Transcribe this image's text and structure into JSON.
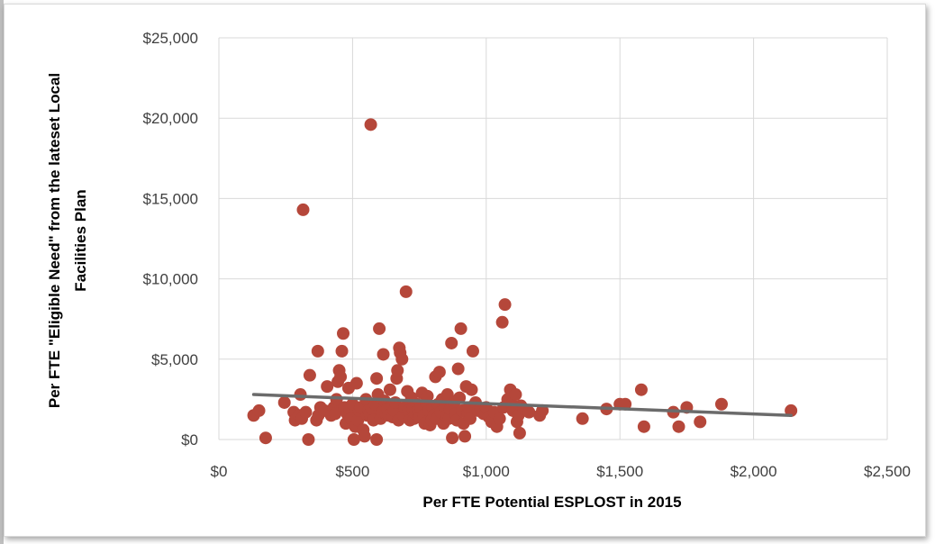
{
  "chart_data": {
    "type": "scatter",
    "title": "",
    "xlabel": "Per FTE Potential ESPLOST in 2015",
    "ylabel_line1": "Per FTE \"Eligible Need\" from the lateset Local",
    "ylabel_line2": "Facilities Plan",
    "xlim": [
      0,
      2500
    ],
    "ylim": [
      0,
      25000
    ],
    "x_ticks": [
      0,
      500,
      1000,
      1500,
      2000,
      2500
    ],
    "x_tick_labels": [
      "$0",
      "$500",
      "$1,000",
      "$1,500",
      "$2,000",
      "$2,500"
    ],
    "y_ticks": [
      0,
      5000,
      10000,
      15000,
      20000,
      25000
    ],
    "y_tick_labels": [
      "$0",
      "$5,000",
      "$10,000",
      "$15,000",
      "$20,000",
      "$25,000"
    ],
    "grid": true,
    "legend": "none",
    "point_color": "#b5473a",
    "trendline_color": "#6b6b6b",
    "trendline": {
      "x": [
        130,
        2140
      ],
      "y": [
        2800,
        1500
      ]
    },
    "points": [
      [
        130,
        1500
      ],
      [
        150,
        1800
      ],
      [
        175,
        100
      ],
      [
        245,
        2300
      ],
      [
        280,
        1700
      ],
      [
        285,
        1200
      ],
      [
        300,
        1500
      ],
      [
        305,
        2800
      ],
      [
        310,
        1300
      ],
      [
        315,
        14300
      ],
      [
        325,
        1700
      ],
      [
        335,
        0
      ],
      [
        340,
        4000
      ],
      [
        365,
        1200
      ],
      [
        370,
        5500
      ],
      [
        372,
        1500
      ],
      [
        380,
        2000
      ],
      [
        395,
        1800
      ],
      [
        405,
        3300
      ],
      [
        420,
        1500
      ],
      [
        430,
        2000
      ],
      [
        435,
        1600
      ],
      [
        440,
        2500
      ],
      [
        445,
        3600
      ],
      [
        450,
        4300
      ],
      [
        455,
        3900
      ],
      [
        460,
        5500
      ],
      [
        465,
        6600
      ],
      [
        470,
        2000
      ],
      [
        475,
        1000
      ],
      [
        480,
        1600
      ],
      [
        485,
        3200
      ],
      [
        490,
        1900
      ],
      [
        495,
        1300
      ],
      [
        500,
        2200
      ],
      [
        505,
        0
      ],
      [
        510,
        800
      ],
      [
        515,
        3500
      ],
      [
        520,
        1200
      ],
      [
        525,
        1800
      ],
      [
        530,
        2000
      ],
      [
        540,
        600
      ],
      [
        545,
        200
      ],
      [
        550,
        2500
      ],
      [
        555,
        1500
      ],
      [
        560,
        1800
      ],
      [
        565,
        1600
      ],
      [
        568,
        19600
      ],
      [
        572,
        1900
      ],
      [
        578,
        1200
      ],
      [
        585,
        2200
      ],
      [
        590,
        0
      ],
      [
        590,
        3800
      ],
      [
        595,
        2800
      ],
      [
        600,
        6900
      ],
      [
        605,
        1300
      ],
      [
        610,
        1700
      ],
      [
        615,
        5300
      ],
      [
        620,
        2400
      ],
      [
        625,
        1600
      ],
      [
        630,
        1900
      ],
      [
        635,
        1500
      ],
      [
        640,
        3100
      ],
      [
        650,
        1400
      ],
      [
        655,
        1800
      ],
      [
        660,
        2300
      ],
      [
        665,
        3800
      ],
      [
        668,
        4300
      ],
      [
        672,
        1200
      ],
      [
        675,
        5700
      ],
      [
        678,
        5400
      ],
      [
        685,
        5000
      ],
      [
        690,
        1500
      ],
      [
        695,
        2000
      ],
      [
        700,
        9200
      ],
      [
        705,
        3000
      ],
      [
        710,
        1800
      ],
      [
        715,
        1200
      ],
      [
        720,
        2600
      ],
      [
        725,
        1900
      ],
      [
        730,
        1300
      ],
      [
        735,
        1600
      ],
      [
        740,
        2200
      ],
      [
        745,
        1800
      ],
      [
        750,
        1400
      ],
      [
        755,
        2000
      ],
      [
        760,
        2900
      ],
      [
        765,
        1500
      ],
      [
        770,
        1000
      ],
      [
        775,
        2300
      ],
      [
        780,
        2700
      ],
      [
        785,
        1800
      ],
      [
        790,
        900
      ],
      [
        795,
        1200
      ],
      [
        800,
        2000
      ],
      [
        805,
        1500
      ],
      [
        810,
        3900
      ],
      [
        815,
        1300
      ],
      [
        820,
        2200
      ],
      [
        825,
        4200
      ],
      [
        830,
        1700
      ],
      [
        835,
        2500
      ],
      [
        840,
        1000
      ],
      [
        845,
        2000
      ],
      [
        850,
        1500
      ],
      [
        855,
        2800
      ],
      [
        860,
        1300
      ],
      [
        865,
        1900
      ],
      [
        870,
        6000
      ],
      [
        873,
        100
      ],
      [
        880,
        2300
      ],
      [
        885,
        1600
      ],
      [
        890,
        1200
      ],
      [
        895,
        4400
      ],
      [
        900,
        2600
      ],
      [
        905,
        6900
      ],
      [
        910,
        1800
      ],
      [
        915,
        1000
      ],
      [
        920,
        200
      ],
      [
        925,
        3300
      ],
      [
        930,
        1600
      ],
      [
        935,
        2000
      ],
      [
        940,
        1300
      ],
      [
        945,
        3100
      ],
      [
        950,
        5500
      ],
      [
        960,
        2300
      ],
      [
        970,
        1800
      ],
      [
        980,
        1900
      ],
      [
        990,
        1600
      ],
      [
        1000,
        2000
      ],
      [
        1010,
        1400
      ],
      [
        1020,
        1100
      ],
      [
        1030,
        1700
      ],
      [
        1040,
        800
      ],
      [
        1050,
        1300
      ],
      [
        1060,
        7300
      ],
      [
        1065,
        2000
      ],
      [
        1070,
        8400
      ],
      [
        1080,
        2500
      ],
      [
        1090,
        3100
      ],
      [
        1095,
        2200
      ],
      [
        1100,
        1800
      ],
      [
        1110,
        2800
      ],
      [
        1115,
        1100
      ],
      [
        1120,
        1500
      ],
      [
        1125,
        400
      ],
      [
        1130,
        2100
      ],
      [
        1140,
        1900
      ],
      [
        1160,
        1700
      ],
      [
        1200,
        1500
      ],
      [
        1210,
        1800
      ],
      [
        1360,
        1300
      ],
      [
        1450,
        1900
      ],
      [
        1500,
        2200
      ],
      [
        1520,
        2200
      ],
      [
        1580,
        3100
      ],
      [
        1590,
        800
      ],
      [
        1700,
        1700
      ],
      [
        1720,
        800
      ],
      [
        1750,
        2000
      ],
      [
        1800,
        1100
      ],
      [
        1880,
        2200
      ],
      [
        2140,
        1800
      ]
    ]
  }
}
